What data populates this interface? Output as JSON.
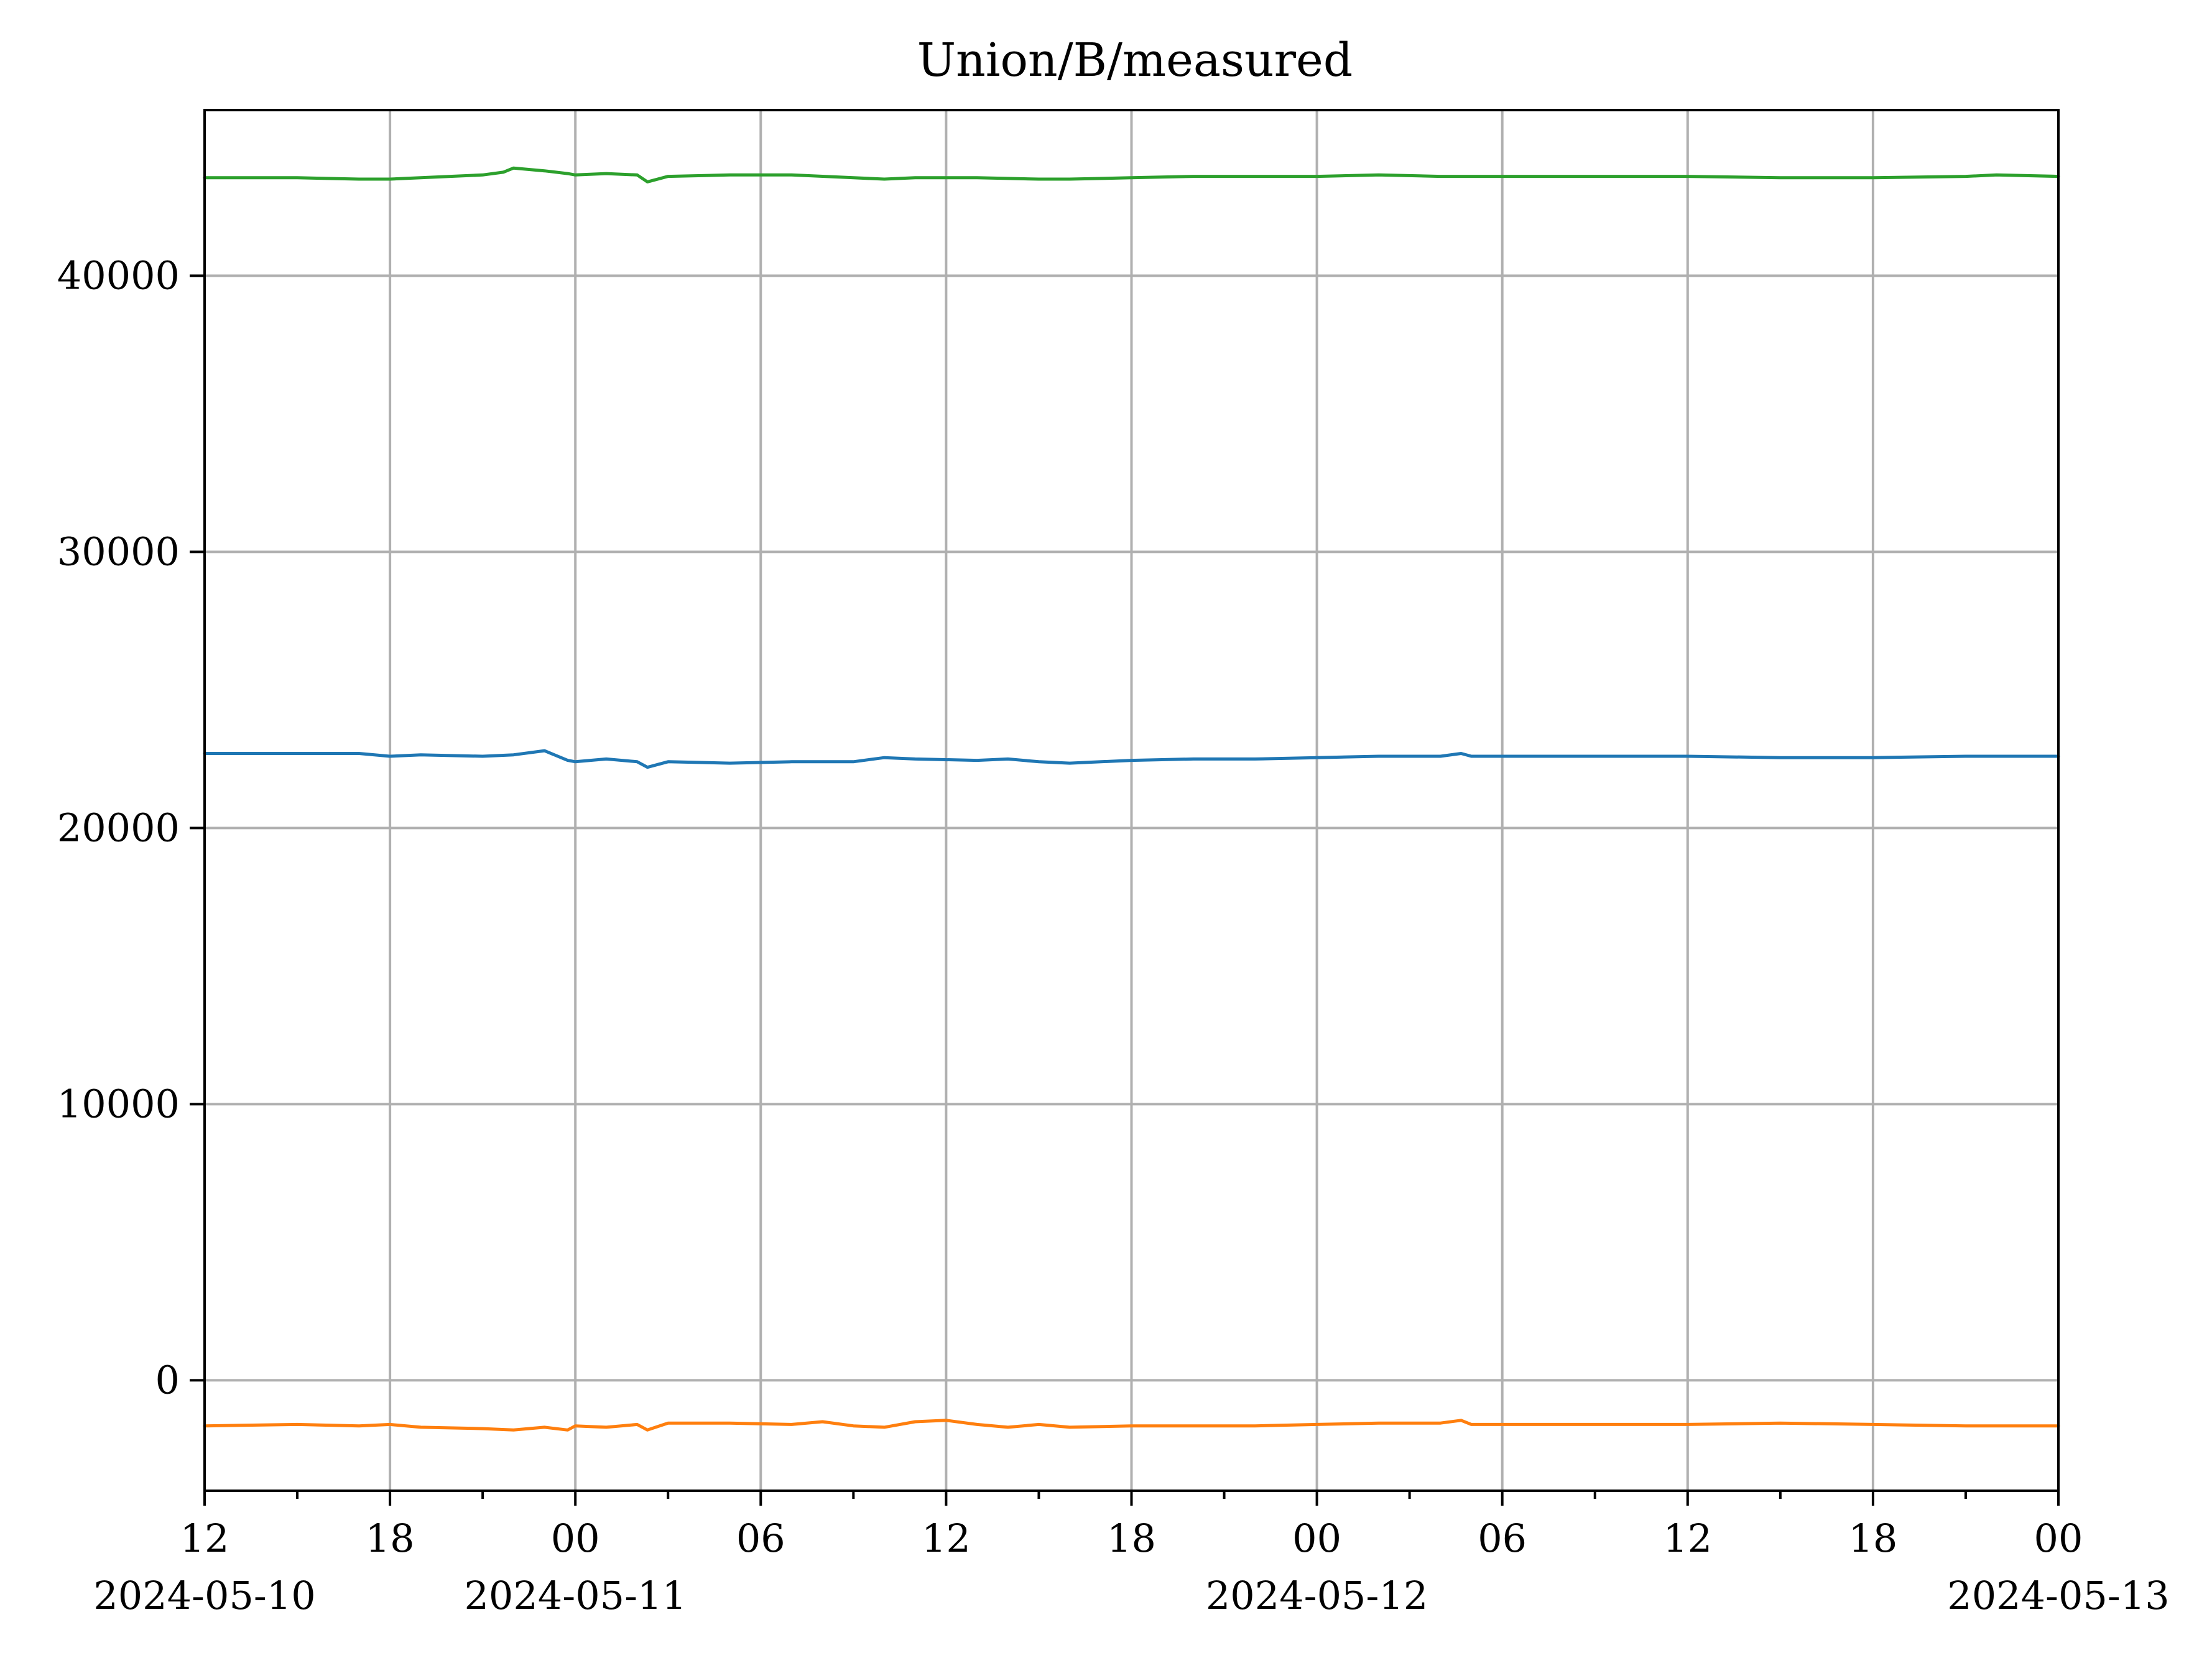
{
  "chart_data": {
    "type": "line",
    "title": "Union/B/measured",
    "xlabel": "",
    "ylabel": "",
    "xlim": [
      "2024-05-10 12:00",
      "2024-05-13 00:00"
    ],
    "ylim": [
      -4000,
      46000
    ],
    "grid": true,
    "legend": "none",
    "x_ticks": [
      {
        "value": "2024-05-10 12:00",
        "label": "12",
        "date_label": "2024-05-10"
      },
      {
        "value": "2024-05-10 18:00",
        "label": "18",
        "date_label": ""
      },
      {
        "value": "2024-05-11 00:00",
        "label": "00",
        "date_label": "2024-05-11"
      },
      {
        "value": "2024-05-11 06:00",
        "label": "06",
        "date_label": ""
      },
      {
        "value": "2024-05-11 12:00",
        "label": "12",
        "date_label": ""
      },
      {
        "value": "2024-05-11 18:00",
        "label": "18",
        "date_label": ""
      },
      {
        "value": "2024-05-12 00:00",
        "label": "00",
        "date_label": "2024-05-12"
      },
      {
        "value": "2024-05-12 06:00",
        "label": "06",
        "date_label": ""
      },
      {
        "value": "2024-05-12 12:00",
        "label": "12",
        "date_label": ""
      },
      {
        "value": "2024-05-12 18:00",
        "label": "18",
        "date_label": ""
      },
      {
        "value": "2024-05-13 00:00",
        "label": "00",
        "date_label": "2024-05-13"
      }
    ],
    "x_minor_ticks": [
      "2024-05-10 15:00",
      "2024-05-10 21:00",
      "2024-05-11 03:00",
      "2024-05-11 09:00",
      "2024-05-11 15:00",
      "2024-05-11 21:00",
      "2024-05-12 03:00",
      "2024-05-12 09:00",
      "2024-05-12 15:00",
      "2024-05-12 21:00"
    ],
    "y_ticks": [
      0,
      10000,
      20000,
      30000,
      40000
    ],
    "y_tick_labels": [
      "0",
      "10000",
      "20000",
      "30000",
      "40000"
    ],
    "series": [
      {
        "color": "#1f77b4",
        "x": [
          "2024-05-10 12:00",
          "2024-05-10 15:00",
          "2024-05-10 17:00",
          "2024-05-10 18:00",
          "2024-05-10 19:00",
          "2024-05-10 21:00",
          "2024-05-10 22:00",
          "2024-05-10 23:00",
          "2024-05-10 23:45",
          "2024-05-11 00:00",
          "2024-05-11 01:00",
          "2024-05-11 02:00",
          "2024-05-11 02:20",
          "2024-05-11 03:00",
          "2024-05-11 05:00",
          "2024-05-11 07:00",
          "2024-05-11 09:00",
          "2024-05-11 10:00",
          "2024-05-11 11:00",
          "2024-05-11 13:00",
          "2024-05-11 14:00",
          "2024-05-11 15:00",
          "2024-05-11 16:00",
          "2024-05-11 18:00",
          "2024-05-11 20:00",
          "2024-05-11 22:00",
          "2024-05-12 00:00",
          "2024-05-12 02:00",
          "2024-05-12 04:00",
          "2024-05-12 04:40",
          "2024-05-12 05:00",
          "2024-05-12 06:00",
          "2024-05-12 09:00",
          "2024-05-12 12:00",
          "2024-05-12 15:00",
          "2024-05-12 18:00",
          "2024-05-12 21:00",
          "2024-05-12 22:00",
          "2024-05-13 00:00"
        ],
        "y": [
          22700,
          22700,
          22700,
          22600,
          22650,
          22600,
          22650,
          22800,
          22450,
          22400,
          22500,
          22400,
          22200,
          22400,
          22350,
          22400,
          22400,
          22550,
          22500,
          22450,
          22500,
          22400,
          22350,
          22450,
          22500,
          22500,
          22550,
          22600,
          22600,
          22700,
          22600,
          22600,
          22600,
          22600,
          22550,
          22550,
          22600,
          22600,
          22600
        ]
      },
      {
        "color": "#ff7f0e",
        "x": [
          "2024-05-10 12:00",
          "2024-05-10 15:00",
          "2024-05-10 17:00",
          "2024-05-10 18:00",
          "2024-05-10 19:00",
          "2024-05-10 21:00",
          "2024-05-10 22:00",
          "2024-05-10 23:00",
          "2024-05-10 23:45",
          "2024-05-11 00:00",
          "2024-05-11 01:00",
          "2024-05-11 02:00",
          "2024-05-11 02:20",
          "2024-05-11 03:00",
          "2024-05-11 05:00",
          "2024-05-11 07:00",
          "2024-05-11 08:00",
          "2024-05-11 09:00",
          "2024-05-11 10:00",
          "2024-05-11 11:00",
          "2024-05-11 12:00",
          "2024-05-11 13:00",
          "2024-05-11 14:00",
          "2024-05-11 15:00",
          "2024-05-11 16:00",
          "2024-05-11 18:00",
          "2024-05-11 20:00",
          "2024-05-11 22:00",
          "2024-05-12 00:00",
          "2024-05-12 02:00",
          "2024-05-12 04:00",
          "2024-05-12 04:40",
          "2024-05-12 05:00",
          "2024-05-12 06:00",
          "2024-05-12 09:00",
          "2024-05-12 12:00",
          "2024-05-12 15:00",
          "2024-05-12 18:00",
          "2024-05-12 21:00",
          "2024-05-13 00:00"
        ],
        "y": [
          -1650,
          -1600,
          -1650,
          -1600,
          -1700,
          -1750,
          -1800,
          -1700,
          -1800,
          -1650,
          -1700,
          -1600,
          -1800,
          -1550,
          -1550,
          -1600,
          -1500,
          -1650,
          -1700,
          -1500,
          -1450,
          -1600,
          -1700,
          -1600,
          -1700,
          -1650,
          -1650,
          -1650,
          -1600,
          -1550,
          -1550,
          -1450,
          -1600,
          -1600,
          -1600,
          -1600,
          -1550,
          -1600,
          -1650,
          -1650
        ]
      },
      {
        "color": "#2ca02c",
        "x": [
          "2024-05-10 12:00",
          "2024-05-10 15:00",
          "2024-05-10 17:00",
          "2024-05-10 18:00",
          "2024-05-10 19:00",
          "2024-05-10 21:00",
          "2024-05-10 21:40",
          "2024-05-10 22:00",
          "2024-05-10 23:00",
          "2024-05-10 23:45",
          "2024-05-11 00:00",
          "2024-05-11 01:00",
          "2024-05-11 02:00",
          "2024-05-11 02:20",
          "2024-05-11 03:00",
          "2024-05-11 05:00",
          "2024-05-11 07:00",
          "2024-05-11 09:00",
          "2024-05-11 10:00",
          "2024-05-11 11:00",
          "2024-05-11 13:00",
          "2024-05-11 15:00",
          "2024-05-11 16:00",
          "2024-05-11 18:00",
          "2024-05-11 20:00",
          "2024-05-11 22:00",
          "2024-05-12 00:00",
          "2024-05-12 02:00",
          "2024-05-12 04:00",
          "2024-05-12 05:00",
          "2024-05-12 06:00",
          "2024-05-12 09:00",
          "2024-05-12 12:00",
          "2024-05-12 15:00",
          "2024-05-12 18:00",
          "2024-05-12 21:00",
          "2024-05-12 22:00",
          "2024-05-13 00:00"
        ],
        "y": [
          43550,
          43550,
          43500,
          43500,
          43550,
          43650,
          43750,
          43900,
          43800,
          43700,
          43650,
          43700,
          43650,
          43400,
          43600,
          43650,
          43650,
          43550,
          43500,
          43550,
          43550,
          43500,
          43500,
          43550,
          43600,
          43600,
          43600,
          43650,
          43600,
          43600,
          43600,
          43600,
          43600,
          43550,
          43550,
          43600,
          43650,
          43600
        ]
      }
    ]
  }
}
